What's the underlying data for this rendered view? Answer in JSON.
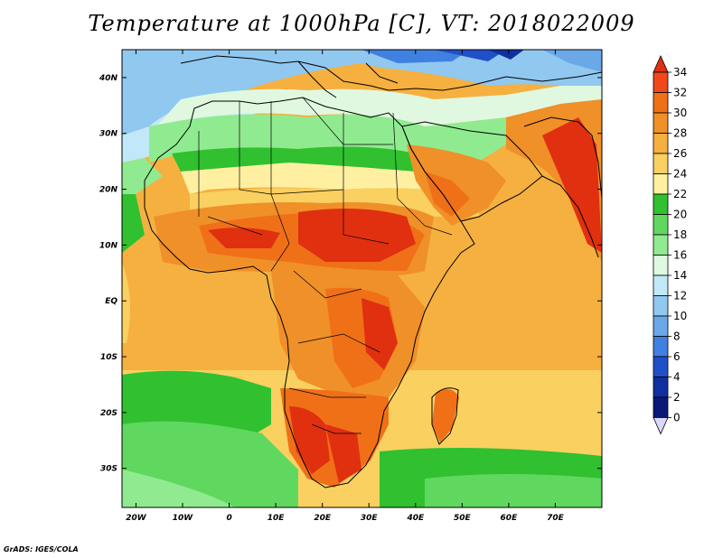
{
  "title": "Temperature at 1000hPa [C], VT: 2018022009",
  "credit": "GrADS: IGES/COLA",
  "map": {
    "lon_range": [
      -23,
      80
    ],
    "lat_range": [
      -37,
      45
    ],
    "x_ticks": [
      "20W",
      "10W",
      "0",
      "10E",
      "20E",
      "30E",
      "40E",
      "50E",
      "60E",
      "70E"
    ],
    "x_tick_values": [
      -20,
      -10,
      0,
      10,
      20,
      30,
      40,
      50,
      60,
      70
    ],
    "y_ticks": [
      "40N",
      "30N",
      "20N",
      "10N",
      "EQ",
      "10S",
      "20S",
      "30S"
    ],
    "y_tick_values": [
      40,
      30,
      20,
      10,
      0,
      -10,
      -20,
      -30
    ]
  },
  "colorbar": {
    "labels": [
      "34",
      "32",
      "30",
      "28",
      "26",
      "24",
      "22",
      "20",
      "18",
      "16",
      "14",
      "12",
      "10",
      "8",
      "6",
      "4",
      "2",
      "0"
    ],
    "colors": [
      "#e03010",
      "#f04818",
      "#f07018",
      "#f09028",
      "#f5b040",
      "#fad060",
      "#fef0a0",
      "#30c030",
      "#60d860",
      "#90eb90",
      "#e0f8e0",
      "#c0e8f8",
      "#90c8f0",
      "#6aa8e8",
      "#4080e0",
      "#2050c8",
      "#1030a0",
      "#0a1878",
      "#dcd8f8"
    ]
  }
}
